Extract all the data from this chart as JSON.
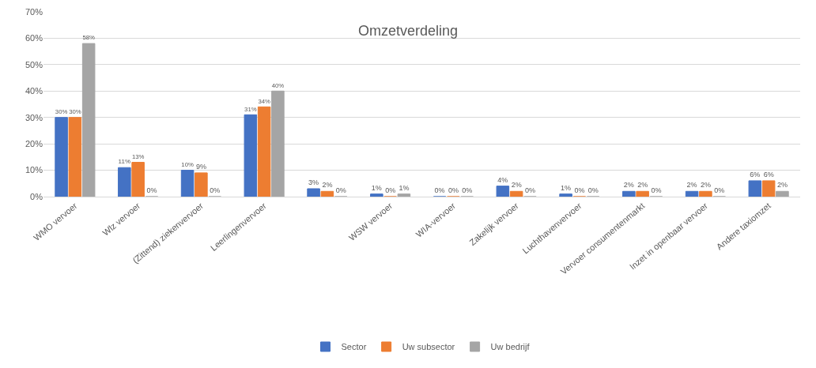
{
  "chart_data": {
    "type": "bar",
    "title": "Omzetverdeling",
    "categories": [
      "WMO vervoer",
      "Wlz vervoer",
      "(Zittend) ziekenvervoer",
      "Leerlingenvervoer",
      null,
      "WSW vervoer",
      "WIA-vervoer",
      "Zakelijk vervoer",
      "Luchthavenvervoer",
      "Vervoer consumentenmarkt",
      "Inzet in openbaar vervoer",
      "Andere taxiomzet"
    ],
    "series": [
      {
        "name": "Sector",
        "color": "#4472c4",
        "values": [
          30,
          11,
          10,
          31,
          3,
          1,
          0,
          4,
          1,
          2,
          2,
          6
        ],
        "value_labels": [
          "30%",
          "11%",
          "10%",
          "31%",
          "3%",
          "1%",
          "0%",
          "4%",
          "1%",
          "2%",
          "2%",
          "6%"
        ]
      },
      {
        "name": "Uw subsector",
        "color": "#ed7d31",
        "values": [
          30,
          13,
          9,
          34,
          2,
          0,
          0,
          2,
          0,
          2,
          2,
          6
        ],
        "value_labels": [
          "30%",
          "13%",
          "9%",
          "34%",
          "2%",
          "0%",
          "0%",
          "2%",
          "0%",
          "2%",
          "2%",
          "6%"
        ]
      },
      {
        "name": "Uw bedrijf",
        "color": "#a5a5a5",
        "values": [
          58,
          0,
          0,
          40,
          0,
          1,
          0,
          0,
          0,
          0,
          0,
          2
        ],
        "value_labels": [
          "58%",
          "0%",
          "0%",
          "40%",
          "0%",
          "1%",
          "0%",
          "0%",
          "0%",
          "0%",
          "0%",
          "2%"
        ]
      }
    ],
    "ylim": [
      0,
      70
    ],
    "yticks": [
      {
        "value": 0,
        "label": "0%"
      },
      {
        "value": 10,
        "label": "10%"
      },
      {
        "value": 20,
        "label": "20%"
      },
      {
        "value": 30,
        "label": "30%"
      },
      {
        "value": 40,
        "label": "40%"
      },
      {
        "value": 50,
        "label": "50%"
      },
      {
        "value": 60,
        "label": "60%"
      },
      {
        "value": 70,
        "label": "70%"
      }
    ],
    "grid": "y",
    "legend": "bottom"
  }
}
